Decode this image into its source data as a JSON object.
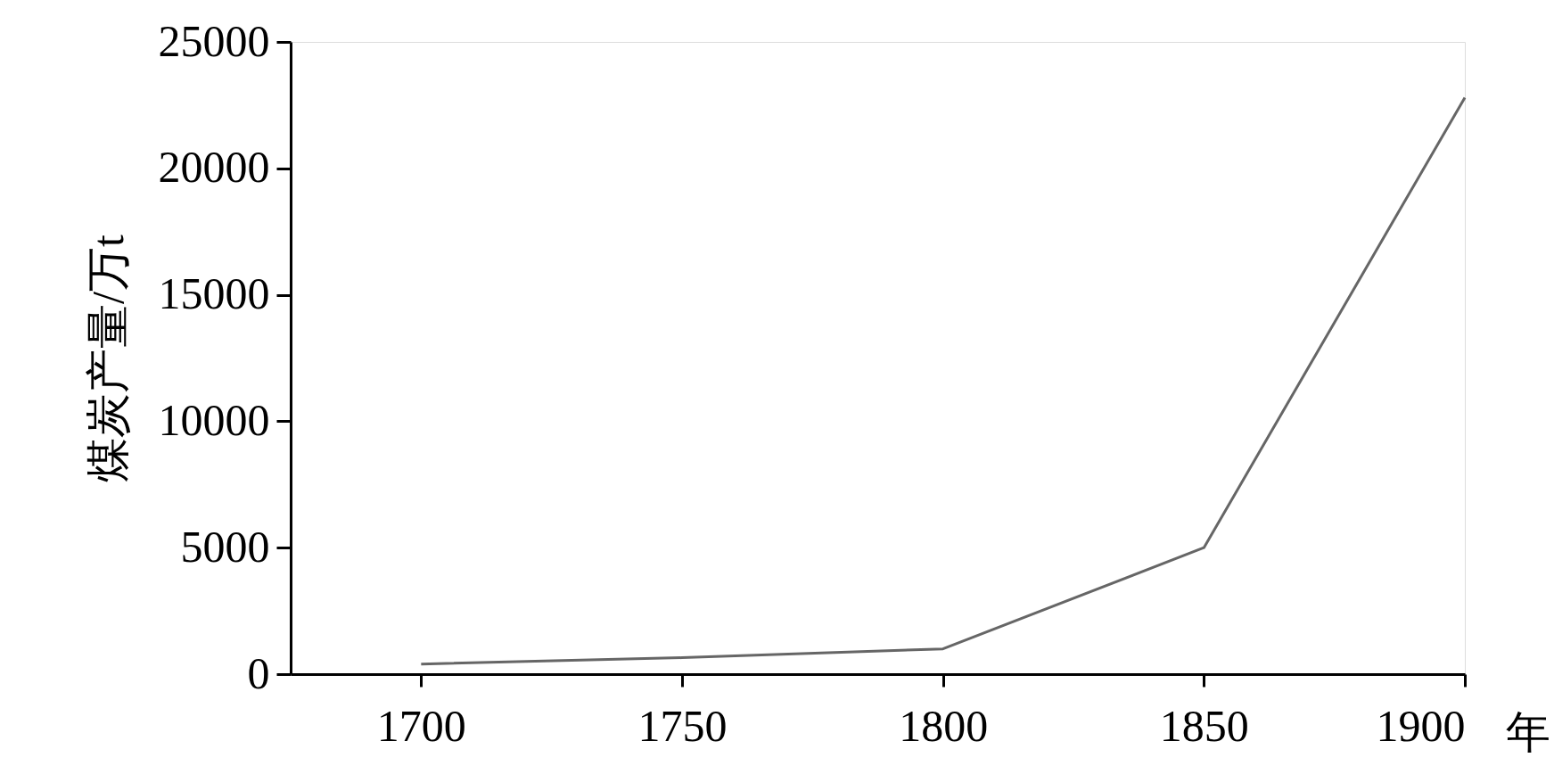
{
  "chart_data": {
    "type": "line",
    "xlabel": "年",
    "ylabel": "煤炭产量/万t",
    "x": [
      1700,
      1750,
      1800,
      1850,
      1900
    ],
    "series": [
      {
        "color": "#666666",
        "values": [
          400,
          650,
          1000,
          5000,
          22800
        ]
      }
    ],
    "xlim": [
      1675,
      1900
    ],
    "xticks": [
      1700,
      1750,
      1800,
      1850,
      1900
    ],
    "ylim": [
      0,
      25000
    ],
    "yticks": [
      0,
      5000,
      10000,
      15000,
      20000,
      25000
    ],
    "grid": false,
    "legend": false,
    "marker": "none",
    "line_style": "solid"
  }
}
